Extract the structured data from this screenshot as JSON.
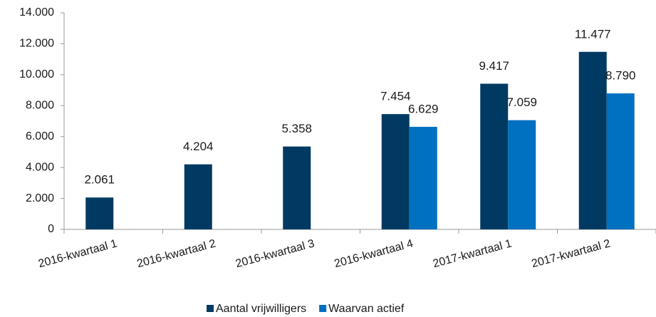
{
  "chart_data": {
    "type": "bar",
    "categories": [
      "2016-kwartaal 1",
      "2016-kwartaal 2",
      "2016-kwartaal 3",
      "2016-kwartaal 4",
      "2017-kwartaal 1",
      "2017-kwartaal 2"
    ],
    "series": [
      {
        "name": "Aantal vrijwilligers",
        "color": "#003a63",
        "values": [
          2061,
          4204,
          5358,
          7454,
          9417,
          11477
        ],
        "value_labels": [
          "2.061",
          "4.204",
          "5.358",
          "7.454",
          "9.417",
          "11.477"
        ]
      },
      {
        "name": "Waarvan actief",
        "color": "#0070c0",
        "values": [
          null,
          null,
          null,
          6629,
          7059,
          8790
        ],
        "value_labels": [
          null,
          null,
          null,
          "6.629",
          "7.059",
          "8.790"
        ]
      }
    ],
    "ylim": [
      0,
      14000
    ],
    "yticks": [
      0,
      {
        "value": 2000,
        "label": "2.000"
      },
      {
        "value": 4000,
        "label": "4.000"
      },
      {
        "value": 6000,
        "label": "6.000"
      },
      {
        "value": 8000,
        "label": "8.000"
      },
      {
        "value": 10000,
        "label": "10.000"
      },
      {
        "value": 12000,
        "label": "12.000"
      },
      {
        "value": 14000,
        "label": "14.000"
      }
    ],
    "grid": false,
    "legend": "bottom"
  }
}
